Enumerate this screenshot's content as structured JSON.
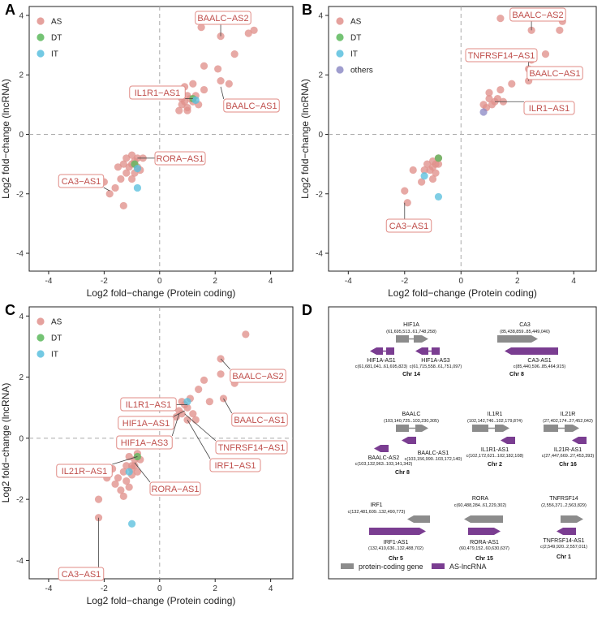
{
  "colors": {
    "AS": "#e0918c",
    "DT": "#5cb85c",
    "IT": "#5bc0de",
    "others": "#8e8cc6",
    "callout_border": "#e08b86",
    "callout_text": "#c0504d",
    "protein_coding": "#8c8c8c",
    "as_lncrna": "#7a3d91"
  },
  "chart_data": [
    {
      "panel": "A",
      "type": "scatter",
      "xlabel": "Log2 fold−change (Protein coding)",
      "ylabel": "Log2 fold−change (lncRNA)",
      "xlim": [
        -4.7,
        4.8
      ],
      "ylim": [
        -4.6,
        4.3
      ],
      "xticks": [
        -4,
        -2,
        0,
        2,
        4
      ],
      "yticks": [
        -4,
        -2,
        0,
        2,
        4
      ],
      "legend": [
        "AS",
        "DT",
        "IT"
      ],
      "series": [
        {
          "name": "AS",
          "points": [
            [
              1.5,
              3.6
            ],
            [
              2.2,
              3.3
            ],
            [
              3.2,
              3.4
            ],
            [
              3.4,
              3.5
            ],
            [
              2.7,
              2.7
            ],
            [
              1.6,
              2.3
            ],
            [
              2.1,
              2.2
            ],
            [
              2.2,
              1.8
            ],
            [
              2.5,
              1.7
            ],
            [
              1.2,
              1.7
            ],
            [
              1.6,
              1.5
            ],
            [
              0.9,
              1.6
            ],
            [
              1.0,
              1.3
            ],
            [
              1.1,
              1.2
            ],
            [
              1.2,
              1.1
            ],
            [
              0.9,
              1.1
            ],
            [
              0.8,
              1.0
            ],
            [
              1.0,
              0.9
            ],
            [
              0.7,
              0.8
            ],
            [
              1.0,
              0.8
            ],
            [
              1.3,
              1.3
            ],
            [
              1.4,
              1.0
            ],
            [
              0.8,
              1.2
            ],
            [
              -1.0,
              -0.7
            ],
            [
              -0.8,
              -0.8
            ],
            [
              -1.2,
              -0.8
            ],
            [
              -0.6,
              -0.8
            ],
            [
              -1.0,
              -1.0
            ],
            [
              -0.8,
              -1.1
            ],
            [
              -1.3,
              -1.0
            ],
            [
              -0.9,
              -1.3
            ],
            [
              -1.2,
              -1.3
            ],
            [
              -1.5,
              -1.1
            ],
            [
              -1.0,
              -1.5
            ],
            [
              -1.4,
              -1.5
            ],
            [
              -0.7,
              -1.2
            ],
            [
              -1.8,
              -2.0
            ],
            [
              -2.0,
              -1.6
            ],
            [
              -1.3,
              -2.4
            ],
            [
              -1.6,
              -1.8
            ],
            [
              -0.9,
              -0.9
            ],
            [
              -1.1,
              -1.1
            ]
          ]
        },
        {
          "name": "DT",
          "points": [
            [
              1.2,
              1.2
            ],
            [
              -0.9,
              -1.0
            ]
          ]
        },
        {
          "name": "IT",
          "points": [
            [
              1.3,
              1.15
            ],
            [
              -0.8,
              -1.15
            ],
            [
              -0.8,
              -1.8
            ]
          ]
        }
      ],
      "annotations": [
        {
          "label": "BAALC−AS2",
          "point": [
            2.2,
            3.3
          ]
        },
        {
          "label": "IL1R1−AS1",
          "point": [
            1.2,
            1.2
          ]
        },
        {
          "label": "BAALC−AS1",
          "point": [
            2.2,
            1.6
          ]
        },
        {
          "label": "RORA−AS1",
          "point": [
            -0.8,
            -0.8
          ]
        },
        {
          "label": "CA3−AS1",
          "point": [
            -1.8,
            -1.9
          ]
        }
      ]
    },
    {
      "panel": "B",
      "type": "scatter",
      "xlabel": "Log2 fold−change (Protein coding)",
      "ylabel": "Log2 fold−change (lncRNA)",
      "xlim": [
        -4.7,
        4.8
      ],
      "ylim": [
        -4.6,
        4.3
      ],
      "xticks": [
        -4,
        -2,
        0,
        2,
        4
      ],
      "yticks": [
        -4,
        -2,
        0,
        2,
        4
      ],
      "legend": [
        "AS",
        "DT",
        "IT",
        "others"
      ],
      "series": [
        {
          "name": "AS",
          "points": [
            [
              1.4,
              3.9
            ],
            [
              2.5,
              3.5
            ],
            [
              3.6,
              3.8
            ],
            [
              3.5,
              3.5
            ],
            [
              2.5,
              2.5
            ],
            [
              2.4,
              2.2
            ],
            [
              2.6,
              2.0
            ],
            [
              2.4,
              1.8
            ],
            [
              1.8,
              1.7
            ],
            [
              3.0,
              2.7
            ],
            [
              1.4,
              1.5
            ],
            [
              1.5,
              1.1
            ],
            [
              1.3,
              1.2
            ],
            [
              1.0,
              1.2
            ],
            [
              0.8,
              1.0
            ],
            [
              1.1,
              1.0
            ],
            [
              0.9,
              0.9
            ],
            [
              1.2,
              1.1
            ],
            [
              1.0,
              1.4
            ],
            [
              -1.0,
              -0.9
            ],
            [
              -0.9,
              -1.0
            ],
            [
              -1.2,
              -1.0
            ],
            [
              -0.8,
              -0.8
            ],
            [
              -1.1,
              -1.2
            ],
            [
              -0.9,
              -1.3
            ],
            [
              -1.3,
              -1.2
            ],
            [
              -1.0,
              -1.5
            ],
            [
              -1.4,
              -1.6
            ],
            [
              -1.7,
              -1.2
            ],
            [
              -2.0,
              -1.9
            ],
            [
              -1.9,
              -2.3
            ],
            [
              -1.0,
              -1.1
            ],
            [
              -0.8,
              -1.0
            ]
          ]
        },
        {
          "name": "DT",
          "points": [
            [
              -0.8,
              -0.8
            ]
          ]
        },
        {
          "name": "IT",
          "points": [
            [
              -1.3,
              -1.4
            ],
            [
              -0.8,
              -2.1
            ]
          ]
        },
        {
          "name": "others",
          "points": [
            [
              0.8,
              0.75
            ]
          ]
        }
      ],
      "annotations": [
        {
          "label": "BAALC−AS2",
          "point": [
            2.5,
            3.5
          ]
        },
        {
          "label": "TNFRSF14−AS1",
          "point": [
            2.4,
            2.3
          ]
        },
        {
          "label": "BAALC−AS1",
          "point": [
            2.4,
            1.8
          ]
        },
        {
          "label": "ILR1−AS1",
          "point": [
            1.2,
            1.1
          ]
        },
        {
          "label": "CA3−AS1",
          "point": [
            -2.0,
            -2.3
          ]
        }
      ]
    },
    {
      "panel": "C",
      "type": "scatter",
      "xlabel": "Log2 fold−change (Protein coding)",
      "ylabel": "Log2 fold−change (lncRNA)",
      "xlim": [
        -4.7,
        4.8
      ],
      "ylim": [
        -4.6,
        4.3
      ],
      "xticks": [
        -4,
        -2,
        0,
        2,
        4
      ],
      "yticks": [
        -4,
        -2,
        0,
        2,
        4
      ],
      "legend": [
        "AS",
        "DT",
        "IT"
      ],
      "series": [
        {
          "name": "AS",
          "points": [
            [
              3.1,
              3.4
            ],
            [
              2.2,
              2.6
            ],
            [
              2.2,
              2.1
            ],
            [
              2.7,
              1.8
            ],
            [
              1.6,
              1.9
            ],
            [
              1.4,
              1.6
            ],
            [
              1.8,
              1.2
            ],
            [
              2.3,
              1.3
            ],
            [
              1.1,
              1.3
            ],
            [
              0.8,
              1.2
            ],
            [
              1.0,
              1.0
            ],
            [
              0.7,
              0.9
            ],
            [
              1.2,
              0.8
            ],
            [
              0.8,
              0.8
            ],
            [
              0.6,
              0.7
            ],
            [
              1.0,
              0.6
            ],
            [
              1.3,
              0.6
            ],
            [
              0.9,
              1.1
            ],
            [
              -0.8,
              -0.5
            ],
            [
              -0.9,
              -0.7
            ],
            [
              -1.1,
              -0.6
            ],
            [
              -0.7,
              -0.7
            ],
            [
              -1.0,
              -0.9
            ],
            [
              -1.2,
              -0.9
            ],
            [
              -0.8,
              -1.1
            ],
            [
              -1.0,
              -1.2
            ],
            [
              -1.3,
              -1.1
            ],
            [
              -1.5,
              -1.3
            ],
            [
              -1.2,
              -1.4
            ],
            [
              -1.6,
              -1.5
            ],
            [
              -1.4,
              -1.7
            ],
            [
              -1.1,
              -1.6
            ],
            [
              -1.7,
              -1.0
            ],
            [
              -1.9,
              -1.3
            ],
            [
              -1.3,
              -1.9
            ],
            [
              -2.2,
              -2.0
            ],
            [
              -2.2,
              -2.6
            ],
            [
              -0.9,
              -0.9
            ],
            [
              -1.0,
              -1.0
            ]
          ]
        },
        {
          "name": "DT",
          "points": [
            [
              -0.8,
              -0.6
            ]
          ]
        },
        {
          "name": "IT",
          "points": [
            [
              1.0,
              1.2
            ],
            [
              -1.1,
              -1.1
            ],
            [
              -1.0,
              -2.8
            ]
          ]
        }
      ],
      "annotations": [
        {
          "label": "BAALC−AS2",
          "point": [
            2.2,
            2.6
          ]
        },
        {
          "label": "IL1R1−AS1",
          "point": [
            1.0,
            1.1
          ]
        },
        {
          "label": "BAALC−AS1",
          "point": [
            2.3,
            1.3
          ]
        },
        {
          "label": "HIF1A−AS1",
          "point": [
            0.9,
            0.9
          ]
        },
        {
          "label": "HIF1A−AS3",
          "point": [
            0.7,
            0.8
          ]
        },
        {
          "label": "TNFRSF14−AS1",
          "point": [
            0.9,
            0.8
          ]
        },
        {
          "label": "IRF1−AS1",
          "point": [
            1.0,
            0.6
          ]
        },
        {
          "label": "IL21R−AS1",
          "point": [
            -0.8,
            -0.6
          ]
        },
        {
          "label": "RORA−AS1",
          "point": [
            -0.9,
            -0.8
          ]
        },
        {
          "label": "CA3−AS1",
          "point": [
            -2.2,
            -2.6
          ]
        }
      ]
    }
  ],
  "panel_d": {
    "letter": "D",
    "groups": [
      {
        "pc_name": "HIF1A",
        "pc_coord": "(61,695,513..61,748,258)",
        "as": [
          {
            "name": "HIF1A-AS1",
            "coord": "c(61,681,041..61,695,823)"
          },
          {
            "name": "HIF1A-AS3",
            "coord": "c(61,715,558..61,751,097)"
          }
        ],
        "chr": "Chr 14"
      },
      {
        "pc_name": "CA3",
        "pc_coord": "(85,438,859..85,449,040)",
        "as": [
          {
            "name": "CA3-AS1",
            "coord": "c(85,440,596..85,464,915)"
          }
        ],
        "chr": "Chr 8"
      },
      {
        "pc_name": "BAALC",
        "pc_coord": "(103,140,725..103,230,305)",
        "as": [
          {
            "name": "BAALC-AS1",
            "coord": "c(103,156,990..103,172,140)"
          },
          {
            "name": "BAALC-AS2",
            "coord": "c(103,132,963..103,141,342)"
          }
        ],
        "chr": "Chr 8"
      },
      {
        "pc_name": "IL1R1",
        "pc_coord": "(102,142,746..102,179,874)",
        "as": [
          {
            "name": "IL1R1-AS1",
            "coord": "c(102,172,621..102,182,108)"
          }
        ],
        "chr": "Chr 2"
      },
      {
        "pc_name": "IL21R",
        "pc_coord": "(27,402,174..27,452,042)",
        "as": [
          {
            "name": "IL21R-AS1",
            "coord": "c(27,447,669..27,453,393)"
          }
        ],
        "chr": "Chr 16"
      },
      {
        "pc_name": "IRF1",
        "pc_coord": "c(132,481,609..132,490,773)",
        "as": [
          {
            "name": "IRF1-AS1",
            "coord": "(132,410,636..132,488,702)"
          }
        ],
        "chr": "Chr 5"
      },
      {
        "pc_name": "RORA",
        "pc_coord": "c(60,488,284..61,229,302)",
        "as": [
          {
            "name": "RORA-AS1",
            "coord": "(60,479,152..60,630,637)"
          }
        ],
        "chr": "Chr 15"
      },
      {
        "pc_name": "TNFRSF14",
        "pc_coord": "(2,556,371..2,563,829)",
        "as": [
          {
            "name": "TNFRSF14-AS1",
            "coord": "c(2,549,920..2,557,011)"
          }
        ],
        "chr": "Chr 1"
      }
    ],
    "legend": {
      "protein_coding": "protein-coding gene",
      "as_lncrna": "AS-lncRNA"
    }
  }
}
